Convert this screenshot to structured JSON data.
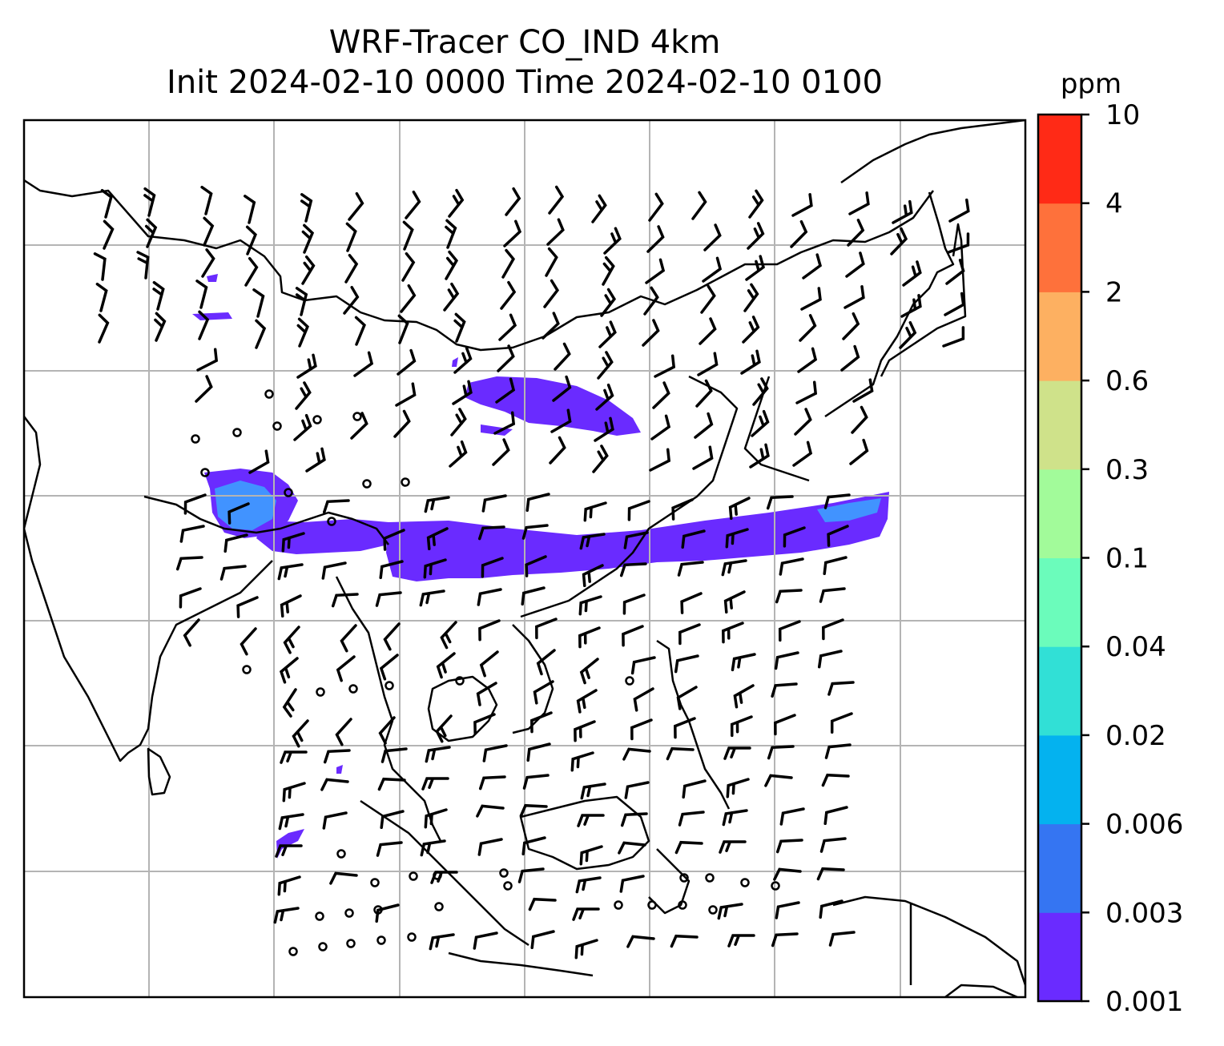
{
  "title": {
    "line1": "WRF-Tracer CO_IND 4km",
    "line2": "Init 2024-02-10 0000 Time 2024-02-10 0100"
  },
  "colorbar": {
    "unit": "ppm",
    "levels": [
      "0.001",
      "0.003",
      "0.006",
      "0.02",
      "0.04",
      "0.1",
      "0.3",
      "0.6",
      "2",
      "4",
      "10"
    ],
    "colors": [
      "#6a2bff",
      "#3575f2",
      "#04b2ef",
      "#31e0d6",
      "#6bfcbb",
      "#a2fb9a",
      "#cfe28a",
      "#fdb061",
      "#fe713b",
      "#ff2a16"
    ]
  },
  "map": {
    "field": "CO_IND tracer concentration",
    "plume_color": "#6a2bff",
    "core_color": "#3aa6ff",
    "coastline_color": "#000000",
    "grid_color": "#b4b4b4",
    "overlays": [
      "coastlines",
      "gridlines",
      "wind-barbs"
    ]
  }
}
